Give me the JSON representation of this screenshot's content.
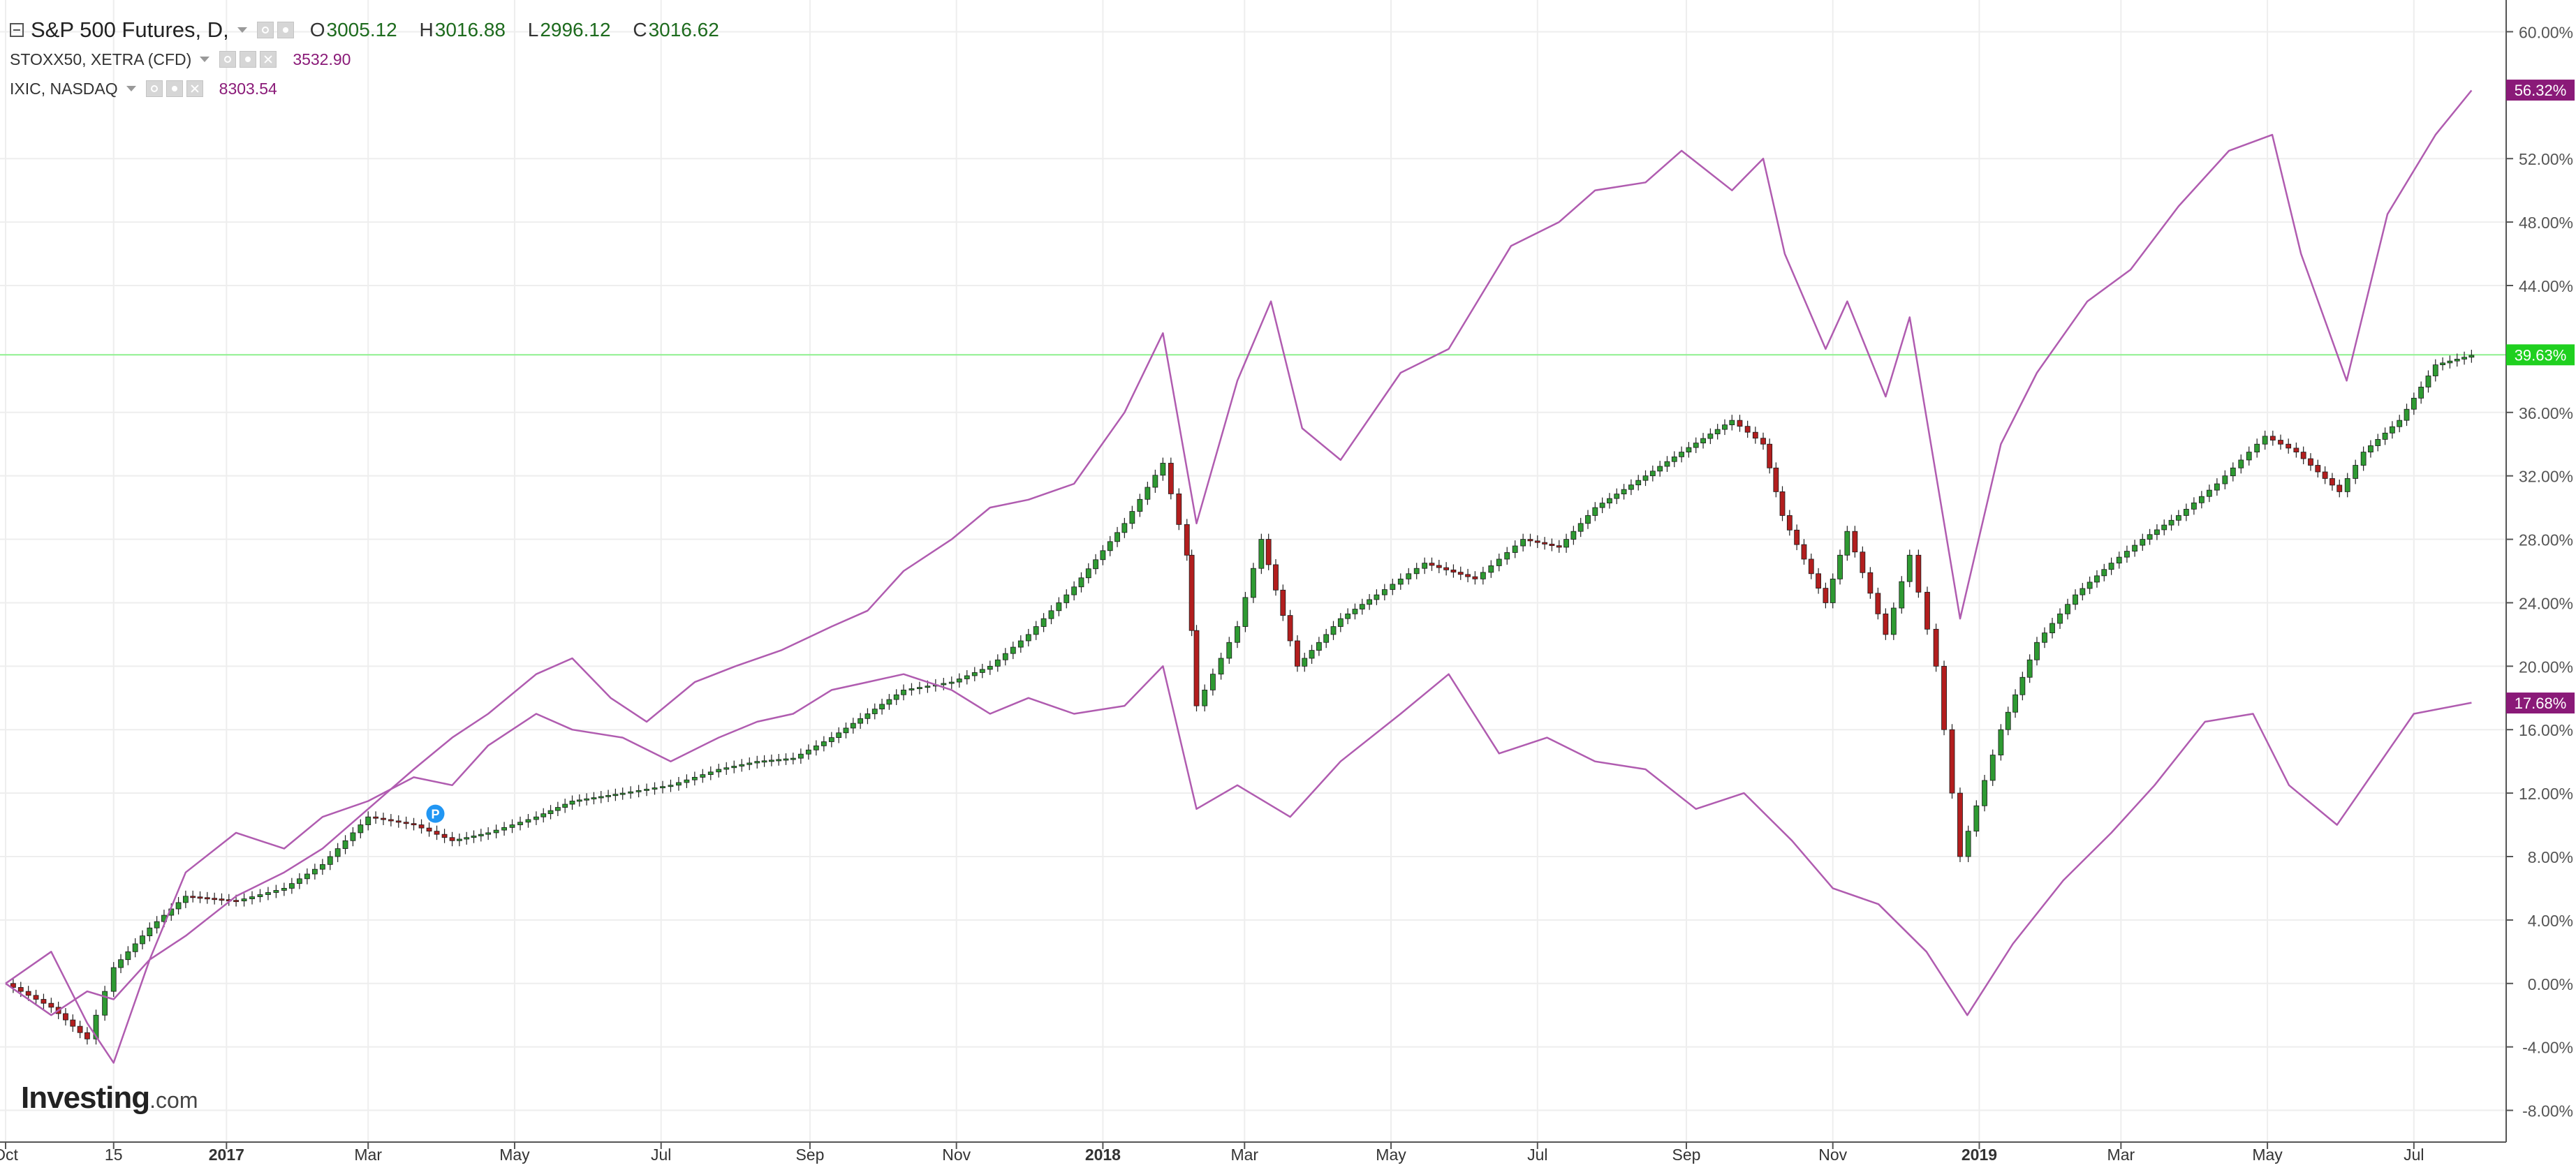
{
  "legend": {
    "main": {
      "title": "S&P 500 Futures, D,",
      "open_label": "O",
      "open": "3005.12",
      "high_label": "H",
      "high": "3016.88",
      "low_label": "L",
      "low": "2996.12",
      "close_label": "C",
      "close": "3016.62"
    },
    "comparisons": [
      {
        "title": "STOXX50, XETRA (CFD)",
        "value": "3532.90"
      },
      {
        "title": "IXIC, NASDAQ",
        "value": "8303.54"
      }
    ]
  },
  "brand": {
    "name": "Investing",
    "tld": ".com"
  },
  "colors": {
    "candle_up": "#2e9a32",
    "candle_down": "#b21e1e",
    "compare_line": "#b05cb0",
    "last_price_line": "#8ef08e",
    "last_price_badge": "#1fd01f",
    "compare_badge": "#8a1a78",
    "grid": "#eeeeee",
    "axis_text": "#555555"
  },
  "chart_data": {
    "type": "line",
    "title": "S&P 500 Futures, D,",
    "xlabel": "",
    "ylabel": "",
    "y_unit": "%",
    "ylim": [
      -10,
      62
    ],
    "xlim": [
      "2016-10-01",
      "2019-07-31"
    ],
    "grid": true,
    "legend_position": "top-left",
    "x_ticks": [
      {
        "label": "Oct",
        "date": "2016-10-01"
      },
      {
        "label": "15",
        "date": "2016-11-15"
      },
      {
        "label": "2017",
        "date": "2017-01-01",
        "bold": true
      },
      {
        "label": "Mar",
        "date": "2017-03-01"
      },
      {
        "label": "May",
        "date": "2017-05-01"
      },
      {
        "label": "Jul",
        "date": "2017-07-01"
      },
      {
        "label": "Sep",
        "date": "2017-09-01"
      },
      {
        "label": "Nov",
        "date": "2017-11-01"
      },
      {
        "label": "2018",
        "date": "2018-01-01",
        "bold": true
      },
      {
        "label": "Mar",
        "date": "2018-03-01"
      },
      {
        "label": "May",
        "date": "2018-05-01"
      },
      {
        "label": "Jul",
        "date": "2018-07-01"
      },
      {
        "label": "Sep",
        "date": "2018-09-01"
      },
      {
        "label": "Nov",
        "date": "2018-11-01"
      },
      {
        "label": "2019",
        "date": "2019-01-01",
        "bold": true
      },
      {
        "label": "Mar",
        "date": "2019-03-01"
      },
      {
        "label": "May",
        "date": "2019-05-01"
      },
      {
        "label": "Jul",
        "date": "2019-07-01"
      }
    ],
    "y_ticks": [
      {
        "value": 60,
        "label": "60.00%"
      },
      {
        "value": 52,
        "label": "52.00%"
      },
      {
        "value": 48,
        "label": "48.00%"
      },
      {
        "value": 44,
        "label": "44.00%"
      },
      {
        "value": 36,
        "label": "36.00%"
      },
      {
        "value": 32,
        "label": "32.00%"
      },
      {
        "value": 28,
        "label": "28.00%"
      },
      {
        "value": 24,
        "label": "24.00%"
      },
      {
        "value": 20,
        "label": "20.00%"
      },
      {
        "value": 16,
        "label": "16.00%"
      },
      {
        "value": 12,
        "label": "12.00%"
      },
      {
        "value": 8,
        "label": "8.00%"
      },
      {
        "value": 4,
        "label": "4.00%"
      },
      {
        "value": 0,
        "label": "0.00%"
      },
      {
        "value": -4,
        "label": "-4.00%"
      },
      {
        "value": -8,
        "label": "-8.00%"
      }
    ],
    "last_price_line": {
      "value": 39.63
    },
    "badges": [
      {
        "value": 56.32,
        "label": "56.32%",
        "color": "#8a1a78"
      },
      {
        "value": 39.63,
        "label": "39.63%",
        "color": "#1fd01f"
      },
      {
        "value": 17.68,
        "label": "17.68%",
        "color": "#8a1a78"
      }
    ],
    "annotations": [
      {
        "label": "P",
        "date": "2017-03-29",
        "value": 10.7
      }
    ],
    "series": [
      {
        "name": "S&P 500 Futures",
        "style": "candlestick",
        "x": [
          "2016-10-01",
          "2016-10-20",
          "2016-11-04",
          "2016-11-15",
          "2016-11-30",
          "2016-12-15",
          "2017-01-05",
          "2017-01-25",
          "2017-02-10",
          "2017-03-01",
          "2017-03-20",
          "2017-04-05",
          "2017-04-20",
          "2017-05-10",
          "2017-05-25",
          "2017-06-15",
          "2017-07-05",
          "2017-07-25",
          "2017-08-10",
          "2017-08-25",
          "2017-09-10",
          "2017-09-25",
          "2017-10-10",
          "2017-10-30",
          "2017-11-15",
          "2017-12-01",
          "2017-12-20",
          "2018-01-10",
          "2018-01-26",
          "2018-02-05",
          "2018-02-09",
          "2018-02-26",
          "2018-03-08",
          "2018-03-23",
          "2018-04-10",
          "2018-04-25",
          "2018-05-15",
          "2018-06-05",
          "2018-06-25",
          "2018-07-10",
          "2018-07-25",
          "2018-08-15",
          "2018-08-30",
          "2018-09-20",
          "2018-10-03",
          "2018-10-11",
          "2018-10-29",
          "2018-11-07",
          "2018-11-23",
          "2018-12-03",
          "2018-12-14",
          "2018-12-24",
          "2019-01-10",
          "2019-01-25",
          "2019-02-10",
          "2019-02-25",
          "2019-03-10",
          "2019-03-25",
          "2019-04-10",
          "2019-04-30",
          "2019-05-13",
          "2019-05-31",
          "2019-06-10",
          "2019-06-25",
          "2019-07-10",
          "2019-07-25"
        ],
        "values": [
          0.0,
          -1.5,
          -3.5,
          1.0,
          3.5,
          5.5,
          5.2,
          6.0,
          7.5,
          10.5,
          10.0,
          9.0,
          9.5,
          10.5,
          11.5,
          12.0,
          12.5,
          13.5,
          14.0,
          14.2,
          15.5,
          17.0,
          18.5,
          19.0,
          20.0,
          22.0,
          25.0,
          29.0,
          32.8,
          27.0,
          17.5,
          22.5,
          28.0,
          20.0,
          23.0,
          24.5,
          26.5,
          25.5,
          28.0,
          27.5,
          30.0,
          32.0,
          33.5,
          35.5,
          34.0,
          29.5,
          24.0,
          28.5,
          22.0,
          27.0,
          20.0,
          8.0,
          16.0,
          21.5,
          24.5,
          26.5,
          28.0,
          29.5,
          31.5,
          34.5,
          33.5,
          31.0,
          33.5,
          35.5,
          39.0,
          39.6
        ]
      },
      {
        "name": "STOXX50, XETRA (CFD)",
        "style": "line",
        "x": [
          "2016-10-01",
          "2016-10-20",
          "2016-11-04",
          "2016-11-15",
          "2016-11-30",
          "2016-12-15",
          "2017-01-05",
          "2017-01-25",
          "2017-02-10",
          "2017-03-01",
          "2017-03-20",
          "2017-04-05",
          "2017-04-20",
          "2017-05-10",
          "2017-05-25",
          "2017-06-15",
          "2017-07-05",
          "2017-07-25",
          "2017-08-10",
          "2017-08-25",
          "2017-09-10",
          "2017-09-25",
          "2017-10-10",
          "2017-10-30",
          "2017-11-15",
          "2017-12-01",
          "2017-12-20",
          "2018-01-10",
          "2018-01-26",
          "2018-02-09",
          "2018-02-26",
          "2018-03-20",
          "2018-04-10",
          "2018-05-05",
          "2018-05-25",
          "2018-06-15",
          "2018-07-05",
          "2018-07-25",
          "2018-08-15",
          "2018-09-05",
          "2018-09-25",
          "2018-10-15",
          "2018-11-01",
          "2018-11-20",
          "2018-12-10",
          "2018-12-27",
          "2019-01-15",
          "2019-02-05",
          "2019-02-25",
          "2019-03-15",
          "2019-04-05",
          "2019-04-25",
          "2019-05-10",
          "2019-05-30",
          "2019-06-15",
          "2019-07-01",
          "2019-07-25"
        ],
        "values": [
          0.0,
          -2.0,
          -0.5,
          -1.0,
          1.5,
          7.0,
          9.5,
          8.5,
          10.5,
          11.5,
          13.0,
          12.5,
          15.0,
          17.0,
          16.0,
          15.5,
          14.0,
          15.5,
          16.5,
          17.0,
          18.5,
          19.0,
          19.5,
          18.5,
          17.0,
          18.0,
          17.0,
          17.5,
          20.0,
          11.0,
          12.5,
          10.5,
          14.0,
          17.0,
          19.5,
          14.5,
          15.5,
          14.0,
          13.5,
          11.0,
          12.0,
          9.0,
          6.0,
          5.0,
          2.0,
          -2.0,
          2.5,
          6.5,
          9.5,
          12.5,
          16.5,
          17.0,
          12.5,
          10.0,
          13.5,
          17.0,
          17.7
        ]
      },
      {
        "name": "IXIC, NASDAQ",
        "style": "line",
        "x": [
          "2016-10-01",
          "2016-10-20",
          "2016-11-04",
          "2016-11-15",
          "2016-11-30",
          "2016-12-15",
          "2017-01-05",
          "2017-01-25",
          "2017-02-10",
          "2017-03-01",
          "2017-03-20",
          "2017-04-05",
          "2017-04-20",
          "2017-05-10",
          "2017-05-25",
          "2017-06-10",
          "2017-06-25",
          "2017-07-15",
          "2017-08-01",
          "2017-08-20",
          "2017-09-10",
          "2017-09-25",
          "2017-10-10",
          "2017-10-30",
          "2017-11-15",
          "2017-12-01",
          "2017-12-20",
          "2018-01-10",
          "2018-01-26",
          "2018-02-09",
          "2018-02-26",
          "2018-03-12",
          "2018-03-25",
          "2018-04-10",
          "2018-05-05",
          "2018-05-25",
          "2018-06-20",
          "2018-07-10",
          "2018-07-25",
          "2018-08-15",
          "2018-08-30",
          "2018-09-20",
          "2018-10-03",
          "2018-10-12",
          "2018-10-29",
          "2018-11-07",
          "2018-11-23",
          "2018-12-03",
          "2018-12-24",
          "2019-01-10",
          "2019-01-25",
          "2019-02-15",
          "2019-03-05",
          "2019-03-25",
          "2019-04-15",
          "2019-05-03",
          "2019-05-15",
          "2019-06-03",
          "2019-06-20",
          "2019-07-10",
          "2019-07-25"
        ],
        "values": [
          0.0,
          2.0,
          -2.5,
          -5.0,
          1.5,
          3.0,
          5.5,
          7.0,
          8.5,
          11.0,
          13.5,
          15.5,
          17.0,
          19.5,
          20.5,
          18.0,
          16.5,
          19.0,
          20.0,
          21.0,
          22.5,
          23.5,
          26.0,
          28.0,
          30.0,
          30.5,
          31.5,
          36.0,
          41.0,
          29.0,
          38.0,
          43.0,
          35.0,
          33.0,
          38.5,
          40.0,
          46.5,
          48.0,
          50.0,
          50.5,
          52.5,
          50.0,
          52.0,
          46.0,
          40.0,
          43.0,
          37.0,
          42.0,
          23.0,
          34.0,
          38.5,
          43.0,
          45.0,
          49.0,
          52.5,
          53.5,
          46.0,
          38.0,
          48.5,
          53.5,
          56.3
        ]
      }
    ]
  }
}
